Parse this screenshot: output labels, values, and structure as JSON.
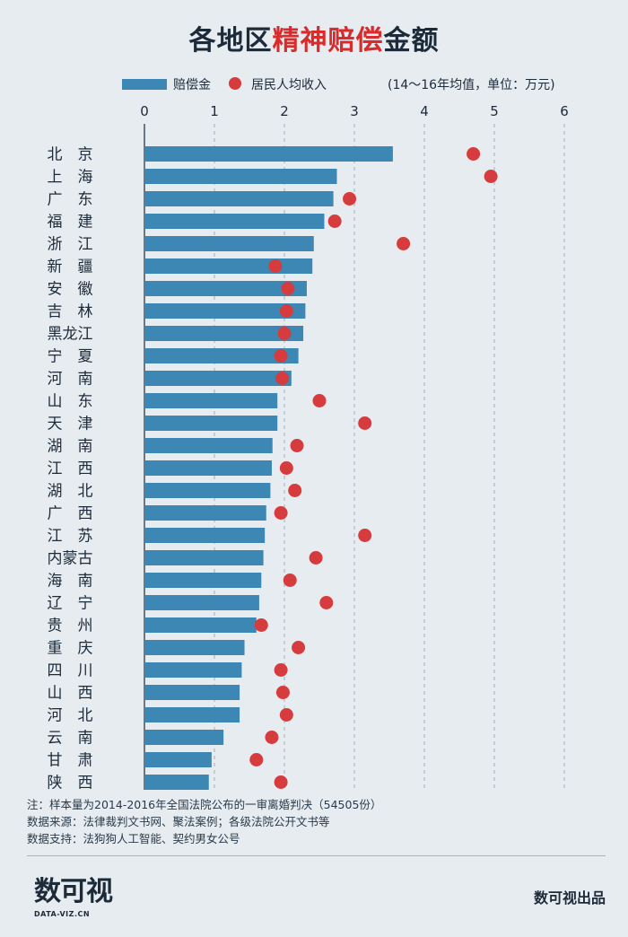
{
  "header": {
    "title_prefix": "各地区",
    "title_highlight": "精神赔偿",
    "title_suffix": "金额"
  },
  "legend": {
    "bar_label": "赔偿金",
    "dot_label": "居民人均收入",
    "note": "(14～16年均值，单位：万元)"
  },
  "colors": {
    "bar": "#3d87b5",
    "dot": "#d63b3d",
    "grid": "#9fb0bc",
    "highlight": "#d92b2b"
  },
  "chart_data": {
    "type": "bar",
    "orientation": "horizontal",
    "x_ticks": [
      "0",
      "1",
      "2",
      "3",
      "4",
      "5",
      "6"
    ],
    "xlim": [
      0,
      6
    ],
    "categories": [
      "北　京",
      "上　海",
      "广　东",
      "福　建",
      "浙　江",
      "新　疆",
      "安　徽",
      "吉　林",
      "黑龙江",
      "宁　夏",
      "河　南",
      "山　东",
      "天　津",
      "湖　南",
      "江　西",
      "湖　北",
      "广　西",
      "江　苏",
      "内蒙古",
      "海　南",
      "辽　宁",
      "贵　州",
      "重　庆",
      "四　川",
      "山　西",
      "河　北",
      "云　南",
      "甘　肃",
      "陕　西"
    ],
    "series": [
      {
        "name": "赔偿金",
        "type": "bar",
        "values": [
          3.55,
          2.75,
          2.7,
          2.57,
          2.42,
          2.4,
          2.32,
          2.3,
          2.27,
          2.2,
          2.1,
          1.9,
          1.9,
          1.83,
          1.82,
          1.8,
          1.74,
          1.72,
          1.7,
          1.67,
          1.64,
          1.6,
          1.43,
          1.39,
          1.36,
          1.36,
          1.13,
          0.96,
          0.92
        ]
      },
      {
        "name": "居民人均收入",
        "type": "scatter",
        "values": [
          4.7,
          4.95,
          2.93,
          2.72,
          3.7,
          1.87,
          2.05,
          2.03,
          2.0,
          1.95,
          1.97,
          2.5,
          3.15,
          2.18,
          2.03,
          2.15,
          1.95,
          3.15,
          2.45,
          2.08,
          2.6,
          1.67,
          2.2,
          1.95,
          1.98,
          2.03,
          1.82,
          1.6,
          1.95
        ]
      }
    ]
  },
  "footer": {
    "note1": "注：样本量为2014-2016年全国法院公布的一审离婚判决（54505份）",
    "note2": "数据来源：法律裁判文书网、聚法案例；各级法院公开文书等",
    "note3": "数据支持：法狗狗人工智能、契约男女公号",
    "logo_text": "数可视",
    "logo_sub": "DATA-VIZ.CN",
    "publisher": "数可视出品"
  }
}
